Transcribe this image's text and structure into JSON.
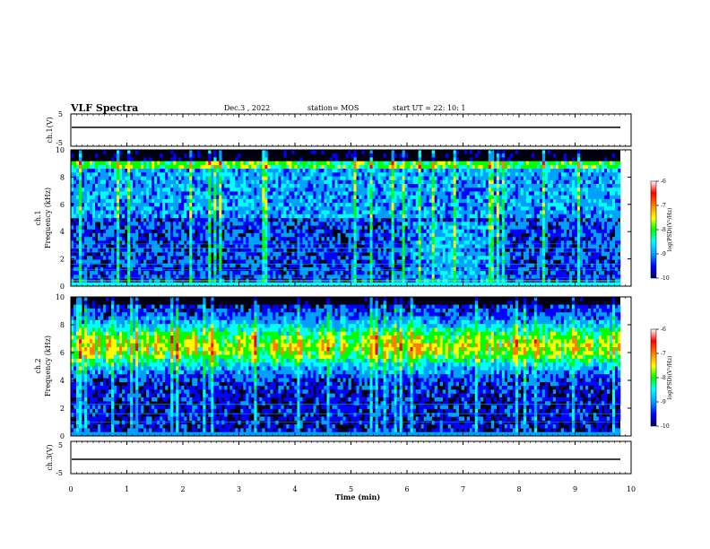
{
  "header": {
    "title": "VLF Spectra",
    "date": "Dec.3 , 2022",
    "station": "station= MOS",
    "start": "start UT = 22: 10: 1"
  },
  "chart_data": {
    "type": "heatmap",
    "x": {
      "label": "Time (min)",
      "range": [
        0,
        10
      ],
      "ticks": [
        "0",
        "1",
        "2",
        "3",
        "4",
        "5",
        "6",
        "7",
        "8",
        "9",
        "10"
      ]
    },
    "panels": [
      {
        "id": "ch1_wave",
        "ylabel": "ch.1(V)",
        "yrange": [
          -5,
          5
        ],
        "yticks": [
          "5",
          "-5"
        ],
        "trace_level": 0
      },
      {
        "id": "ch1_spec",
        "ylabel": "ch.1",
        "ylabel2": "Frequency (kHz)",
        "yrange": [
          0,
          10
        ],
        "yticks": [
          "0",
          "2",
          "4",
          "6",
          "8",
          "10"
        ],
        "colorbar": {
          "label": "log(PSD)(V²/Hz)",
          "range": [
            -10,
            -6
          ],
          "ticks": [
            "-6",
            "-7",
            "-8",
            "-9",
            "-10"
          ]
        }
      },
      {
        "id": "ch2_spec",
        "ylabel": "ch.2",
        "ylabel2": "Frequency (kHz)",
        "yrange": [
          0,
          10
        ],
        "yticks": [
          "0",
          "2",
          "4",
          "6",
          "8",
          "10"
        ],
        "colorbar": {
          "label": "log(PSD)(V²/Hz)",
          "range": [
            -10,
            -6
          ],
          "ticks": [
            "-6",
            "-7",
            "-8",
            "-9",
            "-10"
          ]
        }
      },
      {
        "id": "ch3_wave",
        "ylabel": "ch.3(V)",
        "yrange": [
          -5,
          5
        ],
        "yticks": [
          "5",
          "-5"
        ],
        "trace_level": 0
      }
    ],
    "colormap": [
      "#000060",
      "#0000ff",
      "#00a0ff",
      "#00ffff",
      "#00ff00",
      "#ffff00",
      "#ff8000",
      "#ff0000",
      "#ffffff"
    ]
  }
}
